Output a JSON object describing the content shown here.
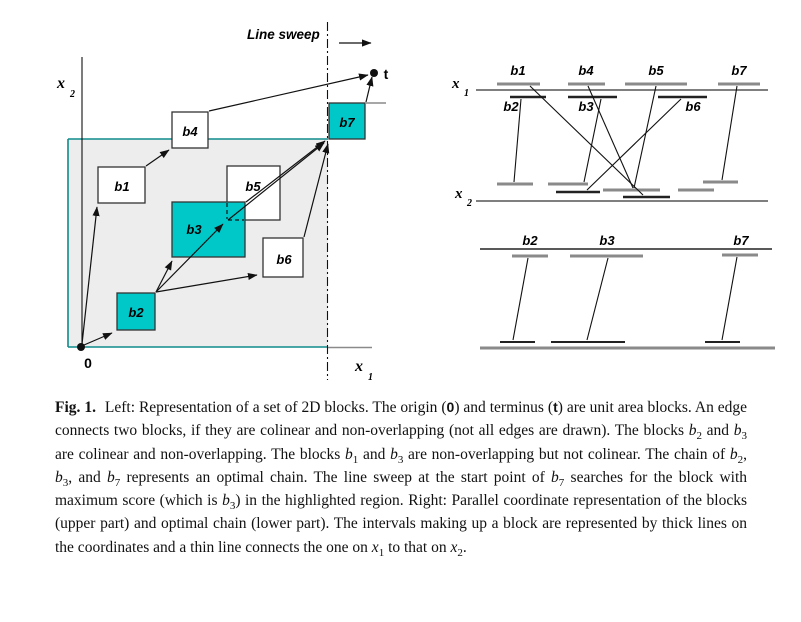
{
  "figure": {
    "colors": {
      "teal_fill": "#00c8c8",
      "region_fill": "#ededed",
      "teal_border": "#0f8b8b",
      "gray_line": "#8a8a8a"
    },
    "left_diagram": {
      "line_sweep_label": "Line sweep",
      "origin_label": "0",
      "terminus_label": "t",
      "x1_axis": {
        "base": "x",
        "sub": "1"
      },
      "x2_axis": {
        "base": "x",
        "sub": "2"
      },
      "blocks": {
        "b1": "b1",
        "b2": "b2",
        "b3": "b3",
        "b4": "b4",
        "b5": "b5",
        "b6": "b6",
        "b7": "b7"
      }
    },
    "upper_right_diagram": {
      "x1_axis": {
        "base": "x",
        "sub": "1"
      },
      "x2_axis": {
        "base": "x",
        "sub": "2"
      },
      "top_labels": [
        "b1",
        "b4",
        "b5",
        "b7"
      ],
      "bottom_labels": [
        "b2",
        "b3",
        "b6"
      ]
    },
    "lower_right_diagram": {
      "labels": [
        "b2",
        "b3",
        "b7"
      ]
    }
  },
  "caption": {
    "segments": [
      {
        "k": "b",
        "t": "Fig. 1."
      },
      {
        "k": "n",
        "t": " Left: Representation of a set of 2D blocks. The origin ("
      },
      {
        "k": "m",
        "t": "0"
      },
      {
        "k": "n",
        "t": ") and terminus ("
      },
      {
        "k": "m",
        "t": "t"
      },
      {
        "k": "n",
        "t": ") are unit area blocks. An edge connects two blocks, if they are colinear and non-overlapping (not all edges are drawn). The blocks "
      },
      {
        "k": "v",
        "t": "b",
        "s": "2"
      },
      {
        "k": "n",
        "t": " and "
      },
      {
        "k": "v",
        "t": "b",
        "s": "3"
      },
      {
        "k": "n",
        "t": " are colinear and non-overlapping. The blocks "
      },
      {
        "k": "v",
        "t": "b",
        "s": "1"
      },
      {
        "k": "n",
        "t": " and "
      },
      {
        "k": "v",
        "t": "b",
        "s": "3"
      },
      {
        "k": "n",
        "t": " are non-overlapping but not colinear. The chain of "
      },
      {
        "k": "v",
        "t": "b",
        "s": "2"
      },
      {
        "k": "n",
        "t": ", "
      },
      {
        "k": "v",
        "t": "b",
        "s": "3"
      },
      {
        "k": "n",
        "t": ", and "
      },
      {
        "k": "v",
        "t": "b",
        "s": "7"
      },
      {
        "k": "n",
        "t": " represents an optimal chain. The line sweep at the start point of "
      },
      {
        "k": "v",
        "t": "b",
        "s": "7"
      },
      {
        "k": "n",
        "t": " searches for the block with maximum score (which is "
      },
      {
        "k": "v",
        "t": "b",
        "s": "3"
      },
      {
        "k": "n",
        "t": ") in the highlighted region. Right: Parallel coordinate representation of the blocks (upper part) and optimal chain (lower part). The intervals making up a block are represented by thick lines on the coordinates and a thin line connects the one on "
      },
      {
        "k": "v",
        "t": "x",
        "s": "1"
      },
      {
        "k": "n",
        "t": " to that on "
      },
      {
        "k": "v",
        "t": "x",
        "s": "2"
      },
      {
        "k": "n",
        "t": "."
      }
    ]
  }
}
